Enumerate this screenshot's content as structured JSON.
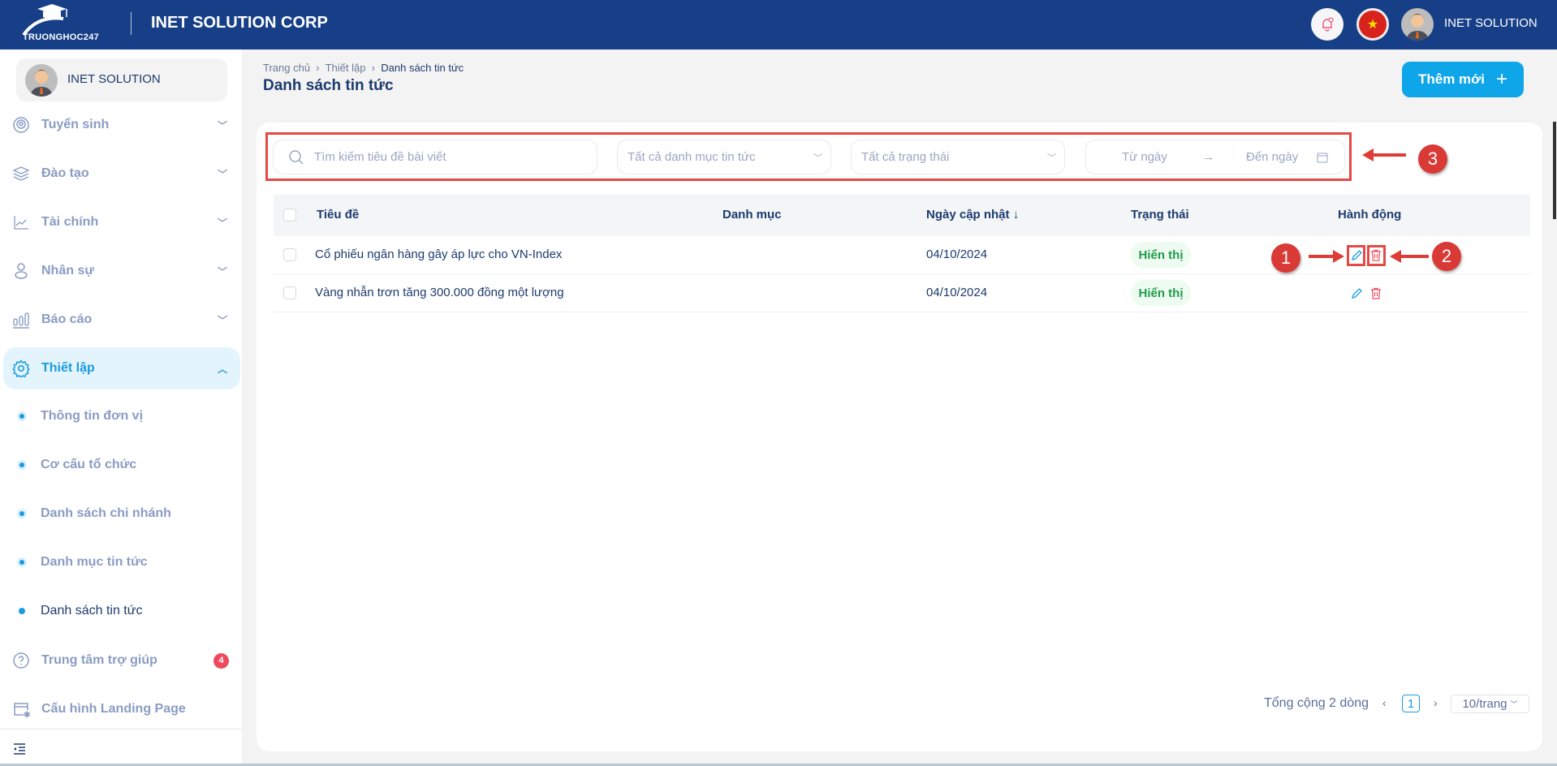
{
  "header": {
    "logo_text": "TRUONGHOC247",
    "org_name": "INET SOLUTION CORP",
    "user_name": "INET SOLUTION",
    "icons": [
      "bell-icon",
      "vietnam-flag-icon",
      "user-avatar"
    ],
    "color": "#173f88"
  },
  "sidebar": {
    "profile_name": "INET SOLUTION",
    "items": [
      {
        "label": "Tuyển sinh",
        "icon": "broadcast-icon"
      },
      {
        "label": "Đào tạo",
        "icon": "layers-icon"
      },
      {
        "label": "Tài chính",
        "icon": "line-chart-icon"
      },
      {
        "label": "Nhân sự",
        "icon": "person-icon"
      },
      {
        "label": "Báo cáo",
        "icon": "bar-chart-icon"
      },
      {
        "label": "Thiết lập",
        "icon": "gear-icon",
        "expanded": true
      }
    ],
    "subitems": [
      {
        "label": "Thông tin đơn vị"
      },
      {
        "label": "Cơ cấu tổ chức"
      },
      {
        "label": "Danh sách chi nhánh"
      },
      {
        "label": "Danh mục tin tức"
      },
      {
        "label": "Danh sách tin tức",
        "active": true
      }
    ],
    "help": {
      "label": "Trung tâm trợ giúp",
      "badge": "4"
    },
    "landing": {
      "label": "Cấu hình Landing Page"
    }
  },
  "breadcrumb": [
    "Trang chủ",
    "Thiết lập",
    "Danh sách tin tức"
  ],
  "page_title": "Danh sách tin tức",
  "add_button": "Thêm mới",
  "filters": {
    "search_placeholder": "Tìm kiếm tiêu đề bài viết",
    "category": "Tất cả danh mục tin tức",
    "status": "Tất cả trạng thái",
    "from_date": "Từ ngày",
    "to_date": "Đến ngày"
  },
  "table": {
    "headers": [
      "Tiêu đề",
      "Danh mục",
      "Ngày cập nhật",
      "Trạng thái",
      "Hành động"
    ],
    "rows": [
      {
        "title": "Cổ phiếu ngân hàng gây áp lực cho VN-Index",
        "category": "",
        "date": "04/10/2024",
        "status": "Hiển thị"
      },
      {
        "title": "Vàng nhẫn trơn tăng 300.000 đồng một lượng",
        "category": "",
        "date": "04/10/2024",
        "status": "Hiển thị"
      }
    ]
  },
  "pagination": {
    "total": "Tổng cộng 2 dòng",
    "page": "1",
    "page_size": "10/trang"
  },
  "annotations": [
    "1",
    "2",
    "3"
  ]
}
